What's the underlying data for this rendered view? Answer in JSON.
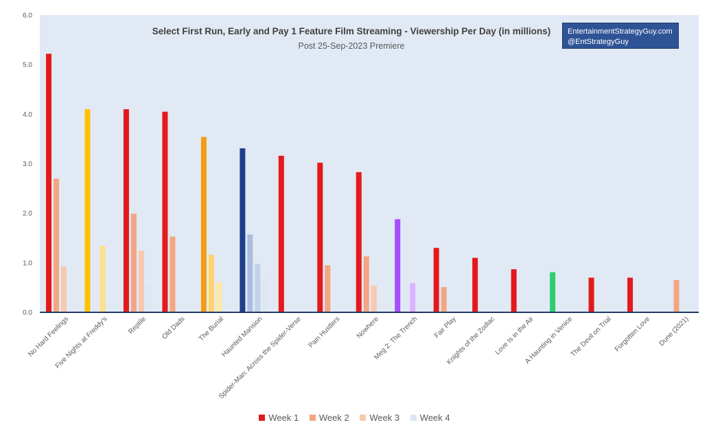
{
  "chart_data": {
    "type": "bar",
    "title": "Select First Run, Early and Pay 1 Feature Film Streaming - Viewership Per Day (in millions)",
    "subtitle": "Post 25-Sep-2023 Premiere",
    "credit": [
      "EntertainmentStrategyGuy.com",
      "@EntStrategyGuy"
    ],
    "ylim": [
      0,
      6
    ],
    "yticks": [
      "0.0",
      "1.0",
      "2.0",
      "3.0",
      "4.0",
      "5.0",
      "6.0"
    ],
    "grid": false,
    "legend_position": "bottom",
    "legend": [
      {
        "name": "Week 1",
        "color": "#e31a1c"
      },
      {
        "name": "Week 2",
        "color": "#f4a582"
      },
      {
        "name": "Week 3",
        "color": "#f7c9b0"
      },
      {
        "name": "Week 4",
        "color": "#dde6f2"
      }
    ],
    "categories": [
      "No Hard Feelings",
      "Five Nights at Freddy's",
      "Reptile",
      "Old Dads",
      "The Burial",
      "Haunted Mansion",
      "Spider-Man: Across the Spider-Verse",
      "Pain Hustlers",
      "Nowhere",
      "Meg 2: The Trench",
      "Fair Play",
      "Knights of the Zodiac",
      "Love Is in the Air",
      "A Haunting in Venice",
      "The Devil on Trial",
      "Forgotten Love",
      "Dune (2021)"
    ],
    "series": [
      {
        "name": "Week 1",
        "values": [
          5.22,
          4.1,
          4.1,
          4.05,
          3.54,
          3.31,
          3.16,
          3.02,
          2.83,
          null,
          1.3,
          1.1,
          0.87,
          null,
          0.7,
          0.7,
          null
        ]
      },
      {
        "name": "Week 2",
        "values": [
          2.7,
          null,
          1.99,
          1.53,
          null,
          null,
          null,
          0.95,
          1.13,
          null,
          0.51,
          null,
          null,
          null,
          null,
          null,
          0.65
        ]
      },
      {
        "name": "Week 3",
        "values": [
          0.93,
          null,
          1.24,
          null,
          null,
          null,
          null,
          null,
          0.54,
          null,
          null,
          null,
          null,
          null,
          null,
          null,
          null
        ]
      },
      {
        "name": "Week 4",
        "values": [
          null,
          null,
          0.55,
          null,
          null,
          null,
          null,
          null,
          null,
          null,
          null,
          null,
          null,
          null,
          null,
          null,
          null
        ]
      }
    ],
    "single_week_bars": [
      {
        "category": "Five Nights at Freddy's",
        "week": 1,
        "value": 4.1
      },
      {
        "category": "Five Nights at Freddy's",
        "week": 3,
        "value": 1.34
      },
      {
        "category": "The Burial",
        "week": 1,
        "value": 3.54
      },
      {
        "category": "The Burial",
        "week": 2,
        "value": 1.16
      },
      {
        "category": "The Burial",
        "week": 3,
        "value": 0.61
      },
      {
        "category": "Haunted Mansion",
        "week": 1,
        "value": 3.31
      },
      {
        "category": "Haunted Mansion",
        "week": 2,
        "value": 1.57
      },
      {
        "category": "Haunted Mansion",
        "week": 3,
        "value": 0.98
      },
      {
        "category": "Haunted Mansion",
        "week": 4,
        "value": 0.67
      },
      {
        "category": "Meg 2: The Trench",
        "week": 1,
        "value": 1.88
      },
      {
        "category": "Meg 2: The Trench",
        "week": 3,
        "value": 0.59
      },
      {
        "category": "A Haunting in Venice",
        "week": 1,
        "value": 0.81
      }
    ],
    "special_colors": {
      "Five Nights at Freddy's": [
        "#ffc000",
        null,
        "#ffe08a",
        null
      ],
      "The Burial": [
        "#f39c12",
        "#ffd36b",
        "#ffe8a3",
        null
      ],
      "Haunted Mansion": [
        "#1f3f8a",
        "#a9bde0",
        "#c2d1ea",
        "#dde6f2"
      ],
      "Meg 2: The Trench": [
        "#a64dff",
        null,
        "#dcb3ff",
        null
      ],
      "A Haunting in Venice": [
        "#2ecc71",
        null,
        null,
        null
      ]
    }
  }
}
